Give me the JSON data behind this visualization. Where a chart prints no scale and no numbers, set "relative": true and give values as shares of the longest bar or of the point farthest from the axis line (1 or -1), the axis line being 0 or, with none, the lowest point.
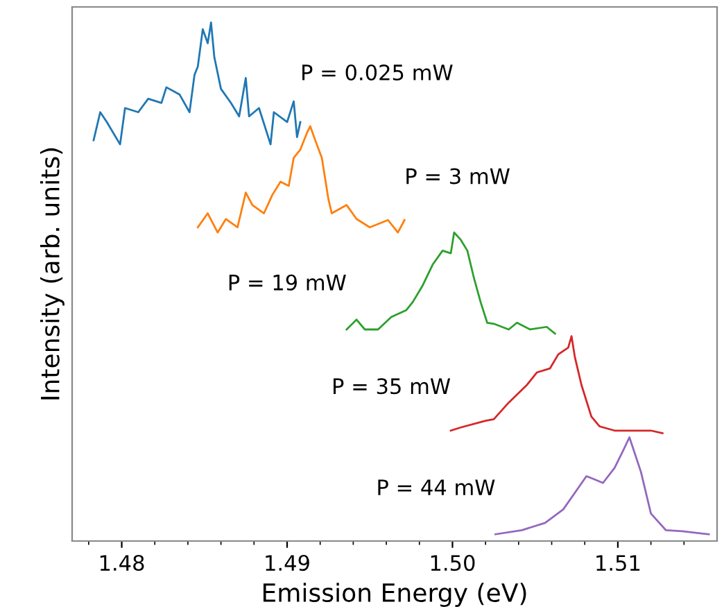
{
  "chart_data": {
    "type": "line",
    "relative": true,
    "xlabel": "Emission Energy (eV)",
    "ylabel": "Intensity (arb. units)",
    "xlim": [
      1.477,
      1.516
    ],
    "xticks": [
      {
        "value": 1.478,
        "label": null
      },
      {
        "value": 1.48,
        "label": "1.48"
      },
      {
        "value": 1.482,
        "label": null
      },
      {
        "value": 1.484,
        "label": null
      },
      {
        "value": 1.486,
        "label": null
      },
      {
        "value": 1.488,
        "label": null
      },
      {
        "value": 1.49,
        "label": "1.49"
      },
      {
        "value": 1.492,
        "label": null
      },
      {
        "value": 1.494,
        "label": null
      },
      {
        "value": 1.496,
        "label": null
      },
      {
        "value": 1.498,
        "label": null
      },
      {
        "value": 1.5,
        "label": "1.50"
      },
      {
        "value": 1.502,
        "label": null
      },
      {
        "value": 1.504,
        "label": null
      },
      {
        "value": 1.506,
        "label": null
      },
      {
        "value": 1.508,
        "label": null
      },
      {
        "value": 1.51,
        "label": "1.51"
      },
      {
        "value": 1.512,
        "label": null
      },
      {
        "value": 1.514,
        "label": null
      }
    ],
    "grid": false,
    "series": [
      {
        "name": "P = 0.025 mW",
        "color": "#1f77b4",
        "x": [
          1.4783,
          1.4787,
          1.4791,
          1.4799,
          1.4802,
          1.481,
          1.4816,
          1.4824,
          1.4827,
          1.4835,
          1.4841,
          1.4844,
          1.4846,
          1.4849,
          1.4852,
          1.4854,
          1.4856,
          1.486,
          1.4866,
          1.4871,
          1.4875,
          1.4877,
          1.4883,
          1.489,
          1.4892,
          1.49,
          1.4904,
          1.4906,
          1.4908
        ],
        "values": [
          0.773,
          0.827,
          0.808,
          0.765,
          0.835,
          0.827,
          0.853,
          0.845,
          0.875,
          0.861,
          0.827,
          0.899,
          0.915,
          0.987,
          0.96,
          1.0,
          0.933,
          0.872,
          0.845,
          0.819,
          0.893,
          0.819,
          0.835,
          0.765,
          0.827,
          0.808,
          0.848,
          0.779,
          0.808
        ]
      },
      {
        "name": "P = 3 mW",
        "color": "#ff7f0e",
        "x": [
          1.4846,
          1.4852,
          1.4858,
          1.4863,
          1.487,
          1.4875,
          1.4879,
          1.4886,
          1.4891,
          1.4896,
          1.4901,
          1.4904,
          1.4908,
          1.4912,
          1.4914,
          1.4917,
          1.4921,
          1.4925,
          1.4927,
          1.4936,
          1.4942,
          1.495,
          1.4961,
          1.4967,
          1.4971
        ],
        "values": [
          0.605,
          0.632,
          0.595,
          0.621,
          0.605,
          0.672,
          0.648,
          0.632,
          0.667,
          0.693,
          0.685,
          0.739,
          0.755,
          0.787,
          0.8,
          0.773,
          0.739,
          0.659,
          0.632,
          0.648,
          0.621,
          0.605,
          0.619,
          0.595,
          0.619
        ]
      },
      {
        "name": "P = 19 mW",
        "color": "#2ca02c",
        "x": [
          1.4936,
          1.4942,
          1.4947,
          1.4955,
          1.4963,
          1.4972,
          1.4976,
          1.4982,
          1.4988,
          1.4994,
          1.4999,
          1.5001,
          1.5005,
          1.5009,
          1.5013,
          1.5017,
          1.5021,
          1.5025,
          1.5034,
          1.5039,
          1.5047,
          1.5057,
          1.5062
        ],
        "values": [
          0.408,
          0.427,
          0.408,
          0.408,
          0.432,
          0.445,
          0.461,
          0.493,
          0.533,
          0.56,
          0.555,
          0.595,
          0.581,
          0.56,
          0.507,
          0.461,
          0.421,
          0.419,
          0.408,
          0.421,
          0.408,
          0.413,
          0.4
        ]
      },
      {
        "name": "P = 35 mW",
        "color": "#d62728",
        "x": [
          1.4999,
          1.5005,
          1.502,
          1.5025,
          1.5034,
          1.5045,
          1.5051,
          1.5059,
          1.5064,
          1.507,
          1.5072,
          1.5074,
          1.5078,
          1.5084,
          1.5089,
          1.5098,
          1.5112,
          1.512,
          1.5127
        ],
        "values": [
          0.213,
          0.219,
          0.232,
          0.235,
          0.267,
          0.301,
          0.325,
          0.333,
          0.36,
          0.373,
          0.395,
          0.355,
          0.301,
          0.24,
          0.221,
          0.213,
          0.213,
          0.213,
          0.208
        ]
      },
      {
        "name": "P = 44 mW",
        "color": "#9467bd",
        "x": [
          1.5026,
          1.5042,
          1.5056,
          1.5067,
          1.5074,
          1.5081,
          1.5085,
          1.5091,
          1.5098,
          1.5103,
          1.5107,
          1.5109,
          1.5114,
          1.512,
          1.5129,
          1.5139,
          1.5155
        ],
        "values": [
          0.013,
          0.021,
          0.035,
          0.061,
          0.093,
          0.125,
          0.12,
          0.112,
          0.141,
          0.173,
          0.2,
          0.181,
          0.133,
          0.053,
          0.021,
          0.019,
          0.013
        ]
      }
    ]
  }
}
